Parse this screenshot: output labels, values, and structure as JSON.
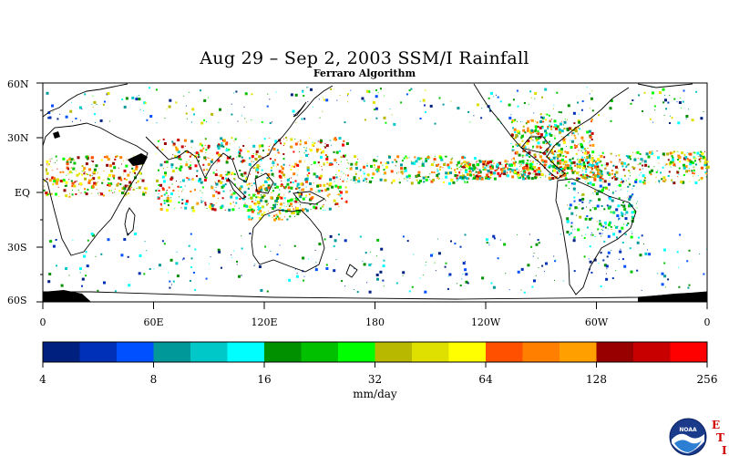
{
  "title": "Aug 29 – Sep 2, 2003 SSM/I Rainfall",
  "subtitle": "Ferraro Algorithm",
  "lat_labels": [
    "60N",
    "30N",
    "EQ",
    "30S",
    "60S"
  ],
  "lon_labels": [
    "0",
    "60E",
    "120E",
    "180",
    "120W",
    "60W",
    "0"
  ],
  "colorbar": {
    "unit": "mm/day",
    "tick_labels": [
      "4",
      "8",
      "16",
      "32",
      "64",
      "128",
      "256"
    ],
    "colors": [
      "#002080",
      "#0030b8",
      "#0050ff",
      "#009898",
      "#00c8c8",
      "#00ffff",
      "#009000",
      "#00c000",
      "#00ff00",
      "#b8b800",
      "#e0e000",
      "#ffff00",
      "#ff5000",
      "#ff8000",
      "#ffa000",
      "#980000",
      "#c80000",
      "#ff0000"
    ]
  },
  "logo": {
    "icon": "noaa-logo",
    "text": "NOAA"
  },
  "eti": {
    "letters": [
      "E",
      "T",
      "I"
    ]
  }
}
